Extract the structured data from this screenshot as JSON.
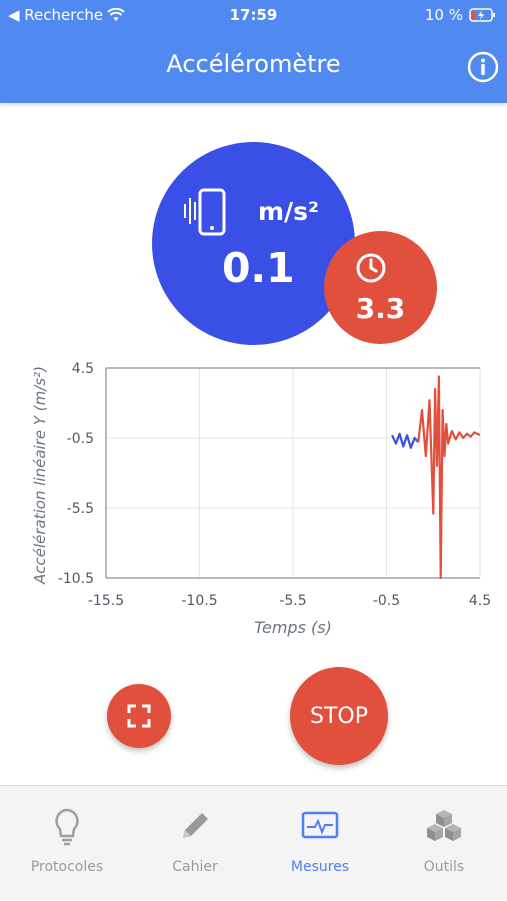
{
  "status": {
    "back_label": "◀ Recherche",
    "time": "17:59",
    "battery": "10 %"
  },
  "header": {
    "title": "Accéléromètre"
  },
  "gauge": {
    "unit": "m/s²",
    "value": "0.1"
  },
  "timer": {
    "value": "3.3"
  },
  "colors": {
    "blue": "#3a4fe6",
    "red": "#e0503c",
    "bar": "#5089f0"
  },
  "chart_data": {
    "type": "line",
    "xlabel": "Temps (s)",
    "ylabel": "Accélération linéaire Y (m/s²)",
    "xlim": [
      -15.5,
      4.5
    ],
    "ylim": [
      -10.5,
      4.5
    ],
    "x_ticks": [
      -15.5,
      -10.5,
      -5.5,
      -0.5,
      4.5
    ],
    "y_ticks": [
      4.5,
      -0.5,
      -5.5,
      -10.5
    ],
    "x_tick_labels": [
      "-15.5",
      "-10.5",
      "-5.5",
      "-0.5",
      "4.5"
    ],
    "y_tick_labels": [
      "4.5",
      "-0.5",
      "-5.5",
      "-10.5"
    ],
    "grid": true,
    "series": [
      {
        "color": "#3a4fe6",
        "x": [
          -0.2,
          0.0,
          0.2,
          0.4,
          0.6,
          0.8,
          1.0,
          1.2
        ],
        "y": [
          -0.3,
          -0.9,
          -0.2,
          -1.1,
          -0.3,
          -1.2,
          -0.5,
          -0.8
        ]
      },
      {
        "color": "#e0503c",
        "x": [
          1.2,
          1.4,
          1.6,
          1.8,
          2.0,
          2.1,
          2.2,
          2.3,
          2.4,
          2.5,
          2.6,
          2.7,
          2.8,
          3.0,
          3.2,
          3.4,
          3.6,
          3.8,
          4.0,
          4.2,
          4.5
        ],
        "y": [
          -0.8,
          1.5,
          -1.8,
          2.2,
          -5.9,
          3.0,
          -2.5,
          3.9,
          -10.5,
          1.5,
          -1.8,
          0.5,
          -0.9,
          0.0,
          -0.6,
          -0.1,
          -0.5,
          -0.2,
          -0.4,
          -0.1,
          -0.3
        ]
      }
    ]
  },
  "actions": {
    "stop_label": "STOP"
  },
  "tabs": [
    {
      "label": "Protocoles",
      "icon": "lightbulb-icon"
    },
    {
      "label": "Cahier",
      "icon": "pencil-icon"
    },
    {
      "label": "Mesures",
      "icon": "monitor-wave-icon"
    },
    {
      "label": "Outils",
      "icon": "cubes-icon"
    }
  ]
}
